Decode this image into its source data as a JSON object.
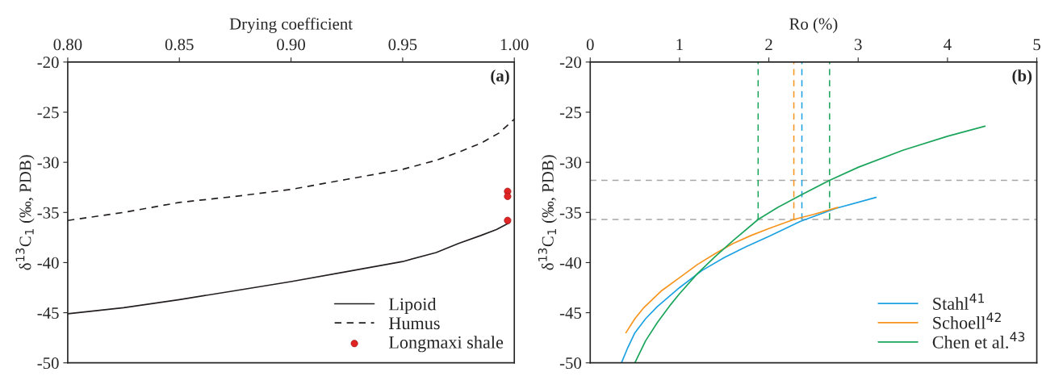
{
  "chart_data": [
    {
      "type": "line",
      "xlabel": "Drying coefficient",
      "ylabel": "δ$^{13}$C$_{1}$ (‰, PDB)",
      "annotations": [
        "(a)"
      ],
      "xlim": [
        0.8,
        1.0
      ],
      "ylim": [
        -50,
        -20
      ],
      "xticks": [
        {
          "value": 0.8,
          "label": "0.80"
        },
        {
          "value": 0.85,
          "label": "0.85"
        },
        {
          "value": 0.9,
          "label": "0.90"
        },
        {
          "value": 0.95,
          "label": "0.95"
        },
        {
          "value": 1.0,
          "label": "1.00"
        }
      ],
      "yticks": [
        -50,
        -45,
        -40,
        -35,
        -30,
        -25,
        -20
      ],
      "grid": false,
      "legend": "bottom right",
      "series": [
        {
          "name": "Lipoid",
          "color": "#231f20",
          "line_style": "solid",
          "x": [
            0.8,
            0.825,
            0.85,
            0.875,
            0.9,
            0.925,
            0.95,
            0.965,
            0.975,
            0.985,
            0.992,
            0.998
          ],
          "values": [
            -45.1,
            -44.5,
            -43.7,
            -42.8,
            -41.9,
            -40.9,
            -39.9,
            -39.0,
            -38.1,
            -37.3,
            -36.7,
            -36.0
          ]
        },
        {
          "name": "Humus",
          "color": "#231f20",
          "line_style": "dashed",
          "x": [
            0.8,
            0.825,
            0.85,
            0.875,
            0.9,
            0.925,
            0.95,
            0.965,
            0.975,
            0.985,
            0.993,
            1.0
          ],
          "values": [
            -35.8,
            -35.0,
            -34.0,
            -33.4,
            -32.7,
            -31.7,
            -30.7,
            -29.8,
            -29.0,
            -28.1,
            -27.1,
            -25.7
          ]
        },
        {
          "name": "Longmaxi shale",
          "type": "scatter",
          "marker": "circle",
          "color": "#e02424",
          "x": [
            0.997,
            0.997,
            0.997
          ],
          "values": [
            -32.9,
            -33.4,
            -35.8
          ]
        }
      ]
    },
    {
      "type": "line",
      "xlabel": "Ro (%)",
      "ylabel": "δ$^{13}$C$_{1}$ (‰, PDB)",
      "annotations": [
        "(b)"
      ],
      "xlim": [
        0,
        5
      ],
      "ylim": [
        -50,
        -20
      ],
      "xticks": [
        0,
        1,
        2,
        3,
        4,
        5
      ],
      "yticks": [
        -50,
        -45,
        -40,
        -35,
        -30,
        -25,
        -20
      ],
      "grid": false,
      "legend": "bottom right",
      "ref_lines": [
        {
          "axis": "y",
          "value": -31.8,
          "color": "#a6a6a6",
          "line_style": "dashed"
        },
        {
          "axis": "y",
          "value": -35.7,
          "color": "#a6a6a6",
          "line_style": "dashed"
        },
        {
          "axis": "x",
          "value": 1.88,
          "color": "#1aa55a",
          "line_style": "dashed"
        },
        {
          "axis": "x",
          "value": 2.68,
          "color": "#1aa55a",
          "line_style": "dashed"
        },
        {
          "axis": "x",
          "value": 2.28,
          "color": "#f7941d",
          "line_style": "dashed"
        },
        {
          "axis": "x",
          "value": 2.37,
          "color": "#1ba1e2",
          "line_style": "dashed"
        }
      ],
      "series": [
        {
          "name": "Stahl$^{41}$",
          "color": "#1ba1e2",
          "x": [
            0.35,
            0.42,
            0.5,
            0.62,
            0.75,
            1.0,
            1.25,
            1.5,
            1.75,
            2.0,
            2.35,
            2.75,
            3.2
          ],
          "values": [
            -50,
            -48.5,
            -47.0,
            -45.6,
            -44.4,
            -42.5,
            -40.8,
            -39.5,
            -38.4,
            -37.4,
            -35.9,
            -34.6,
            -33.5
          ]
        },
        {
          "name": "Schoell$^{42}$",
          "color": "#f7941d",
          "x": [
            0.4,
            0.5,
            0.6,
            0.8,
            1.0,
            1.2,
            1.4,
            1.6,
            1.8,
            2.0,
            2.28,
            2.5,
            2.77
          ],
          "values": [
            -47.0,
            -45.6,
            -44.5,
            -42.8,
            -41.5,
            -40.2,
            -39.1,
            -38.1,
            -37.3,
            -36.6,
            -35.7,
            -35.2,
            -34.5
          ]
        },
        {
          "name": "Chen et al.$^{43}$",
          "color": "#1aa55a",
          "x": [
            0.5,
            0.62,
            0.75,
            0.9,
            1.0,
            1.2,
            1.4,
            1.6,
            1.88,
            2.1,
            2.35,
            2.68,
            3.0,
            3.5,
            4.0,
            4.42
          ],
          "values": [
            -50,
            -47.8,
            -46.0,
            -44.2,
            -43.1,
            -41.1,
            -39.4,
            -37.8,
            -35.7,
            -34.5,
            -33.3,
            -31.8,
            -30.5,
            -28.8,
            -27.4,
            -26.4
          ]
        }
      ]
    }
  ]
}
